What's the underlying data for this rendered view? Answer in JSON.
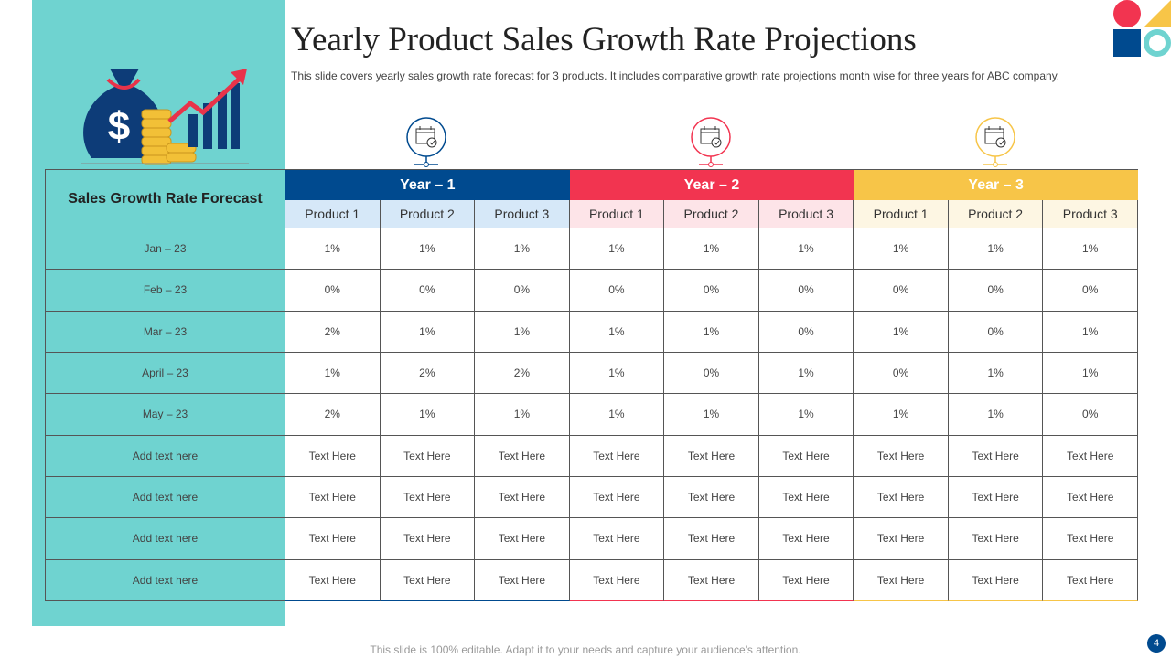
{
  "header": {
    "title": "Yearly Product Sales Growth Rate Projections",
    "subtitle": "This slide covers yearly sales growth rate forecast for 3 products. It includes comparative growth rate projections month wise for three years for ABC company."
  },
  "table": {
    "corner": "Sales Growth Rate Forecast",
    "years": [
      {
        "label": "Year – 1",
        "products": [
          "Product 1",
          "Product 2",
          "Product 3"
        ]
      },
      {
        "label": "Year – 2",
        "products": [
          "Product 1",
          "Product 2",
          "Product 3"
        ]
      },
      {
        "label": "Year – 3",
        "products": [
          "Product 1",
          "Product 2",
          "Product 3"
        ]
      }
    ],
    "rows": [
      {
        "label": "Jan – 23",
        "cells": [
          "1%",
          "1%",
          "1%",
          "1%",
          "1%",
          "1%",
          "1%",
          "1%",
          "1%"
        ]
      },
      {
        "label": "Feb – 23",
        "cells": [
          "0%",
          "0%",
          "0%",
          "0%",
          "0%",
          "0%",
          "0%",
          "0%",
          "0%"
        ]
      },
      {
        "label": "Mar – 23",
        "cells": [
          "2%",
          "1%",
          "1%",
          "1%",
          "1%",
          "0%",
          "1%",
          "0%",
          "1%"
        ]
      },
      {
        "label": "April – 23",
        "cells": [
          "1%",
          "2%",
          "2%",
          "1%",
          "0%",
          "1%",
          "0%",
          "1%",
          "1%"
        ]
      },
      {
        "label": "May – 23",
        "cells": [
          "2%",
          "1%",
          "1%",
          "1%",
          "1%",
          "1%",
          "1%",
          "1%",
          "0%"
        ]
      },
      {
        "label": "Add text here",
        "cells": [
          "Text Here",
          "Text Here",
          "Text Here",
          "Text Here",
          "Text Here",
          "Text Here",
          "Text Here",
          "Text Here",
          "Text Here"
        ]
      },
      {
        "label": "Add text here",
        "cells": [
          "Text Here",
          "Text Here",
          "Text Here",
          "Text Here",
          "Text Here",
          "Text Here",
          "Text Here",
          "Text Here",
          "Text Here"
        ]
      },
      {
        "label": "Add text here",
        "cells": [
          "Text Here",
          "Text Here",
          "Text Here",
          "Text Here",
          "Text Here",
          "Text Here",
          "Text Here",
          "Text Here",
          "Text Here"
        ]
      },
      {
        "label": "Add text here",
        "cells": [
          "Text Here",
          "Text Here",
          "Text Here",
          "Text Here",
          "Text Here",
          "Text Here",
          "Text Here",
          "Text Here",
          "Text Here"
        ]
      }
    ]
  },
  "footer": {
    "note": "This slide is 100% editable. Adapt it to your needs and capture your audience's attention.",
    "page": "4"
  }
}
